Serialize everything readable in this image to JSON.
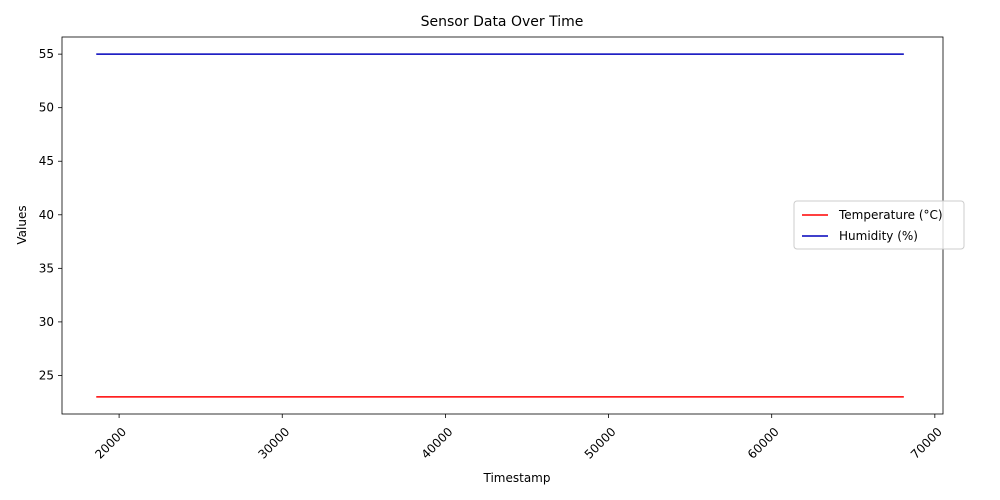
{
  "chart_data": {
    "type": "line",
    "title": "Sensor Data Over Time",
    "xlabel": "Timestamp",
    "ylabel": "Values",
    "xlim": [
      16500,
      70500
    ],
    "ylim": [
      21.4,
      56.6
    ],
    "xticks": [
      20000,
      30000,
      40000,
      50000,
      60000,
      70000
    ],
    "yticks": [
      25,
      30,
      35,
      40,
      45,
      50,
      55
    ],
    "x_tick_rotation_deg": 45,
    "grid": false,
    "legend_position": "center-right",
    "series": [
      {
        "name": "Temperature (°C)",
        "color": "#ff0000",
        "x": [
          18600,
          68100
        ],
        "y": [
          23,
          23
        ]
      },
      {
        "name": "Humidity (%)",
        "color": "#0000bb",
        "x": [
          18600,
          68100
        ],
        "y": [
          55,
          55
        ]
      }
    ]
  }
}
